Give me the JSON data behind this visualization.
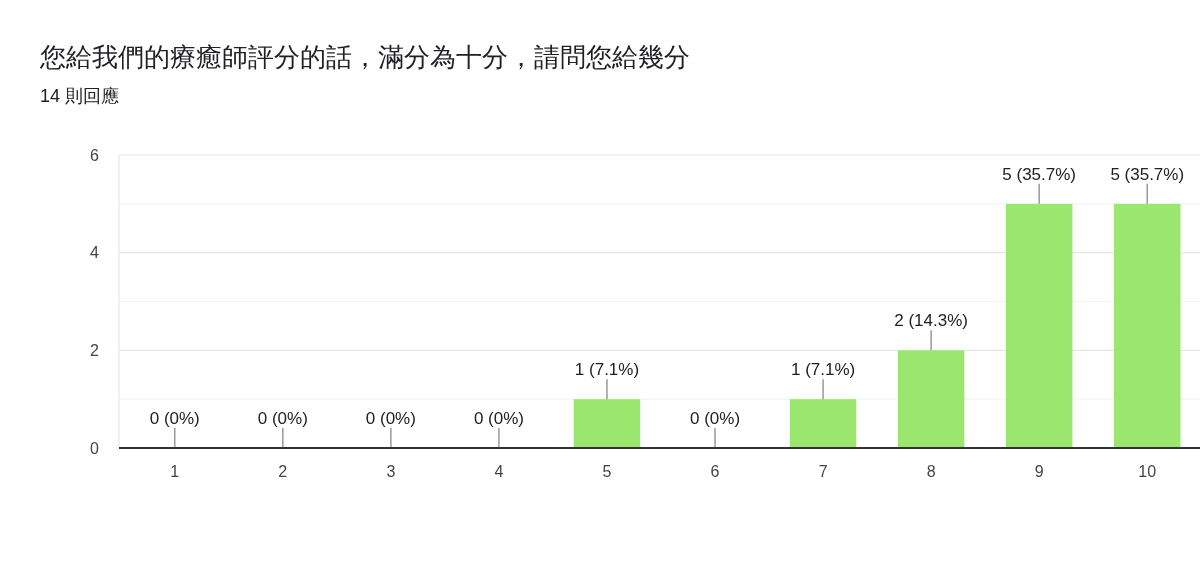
{
  "chart_data": {
    "type": "bar",
    "title": "您給我們的療癒師評分的話，滿分為十分，請問您給幾分",
    "subtitle": "14 則回應",
    "categories": [
      "1",
      "2",
      "3",
      "4",
      "5",
      "6",
      "7",
      "8",
      "9",
      "10"
    ],
    "values": [
      0,
      0,
      0,
      0,
      1,
      0,
      1,
      2,
      5,
      5
    ],
    "color": "#9ae66e",
    "value_labels": [
      "0 (0%)",
      "0 (0%)",
      "0 (0%)",
      "0 (0%)",
      "1 (7.1%)",
      "0 (0%)",
      "1 (7.1%)",
      "2 (14.3%)",
      "5 (35.7%)",
      "5 (35.7%)"
    ],
    "ylim": [
      0,
      6
    ],
    "yticks": [
      0,
      {
        "value": 1,
        "label": null
      },
      2,
      {
        "value": 3,
        "label": null
      },
      4,
      {
        "value": 5,
        "label": null
      },
      6
    ],
    "grid": true
  }
}
